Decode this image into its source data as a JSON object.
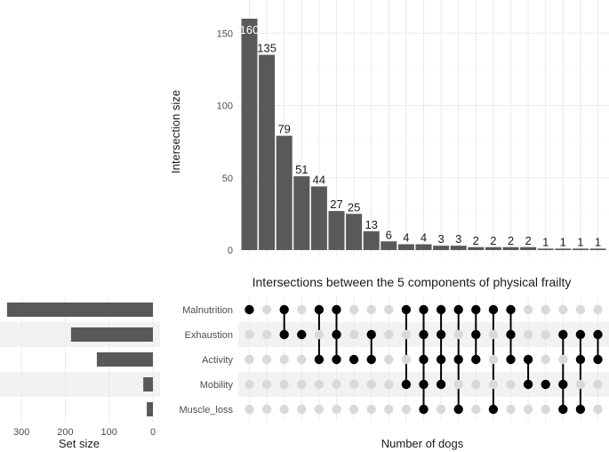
{
  "chart_data": {
    "type": "bar",
    "title": "Intersections between the 5 components of physical frailty",
    "intersections": {
      "ylabel": "Intersection size",
      "xlabel": "Number of dogs",
      "ylim": [
        0,
        168
      ],
      "yticks": [
        0,
        50,
        100,
        150
      ],
      "values": [
        160,
        135,
        79,
        51,
        44,
        27,
        25,
        13,
        6,
        4,
        4,
        3,
        3,
        2,
        2,
        2,
        2,
        1,
        1,
        1,
        1
      ],
      "labels": [
        "160",
        "135",
        "79",
        "51",
        "44",
        "27",
        "25",
        "13",
        "6",
        "4",
        "4",
        "3",
        "3",
        "2",
        "2",
        "2",
        "2",
        "1",
        "1",
        "1",
        "1"
      ],
      "bar_color": "#595959"
    },
    "sets": {
      "names": [
        "Malnutrition",
        "Exhaustion",
        "Activity",
        "Mobility",
        "Muscle_loss"
      ],
      "set_sizes": [
        333,
        187,
        128,
        22,
        14
      ],
      "xlabel": "Set size",
      "xticks": [
        300,
        200,
        100,
        0
      ],
      "xlim": [
        345,
        0
      ]
    },
    "membership": [
      [
        1,
        0,
        0,
        0,
        0
      ],
      [
        0,
        0,
        0,
        0,
        0
      ],
      [
        1,
        1,
        0,
        0,
        0
      ],
      [
        0,
        1,
        0,
        0,
        0
      ],
      [
        1,
        0,
        1,
        0,
        0
      ],
      [
        1,
        1,
        1,
        0,
        0
      ],
      [
        0,
        0,
        1,
        0,
        0
      ],
      [
        0,
        1,
        1,
        0,
        0
      ],
      [
        0,
        0,
        0,
        0,
        0
      ],
      [
        1,
        0,
        0,
        1,
        0
      ],
      [
        1,
        1,
        1,
        1,
        1
      ],
      [
        1,
        1,
        1,
        1,
        0
      ],
      [
        1,
        0,
        1,
        0,
        1
      ],
      [
        1,
        1,
        1,
        0,
        0
      ],
      [
        1,
        0,
        0,
        0,
        1
      ],
      [
        1,
        1,
        1,
        0,
        0
      ],
      [
        0,
        0,
        1,
        1,
        0
      ],
      [
        0,
        0,
        0,
        1,
        0
      ],
      [
        0,
        1,
        0,
        1,
        1
      ],
      [
        0,
        1,
        1,
        0,
        1
      ],
      [
        0,
        1,
        1,
        0,
        0
      ]
    ],
    "dot_on_color": "#000000",
    "dot_off_color": "#d9d9d9",
    "grid": true
  }
}
